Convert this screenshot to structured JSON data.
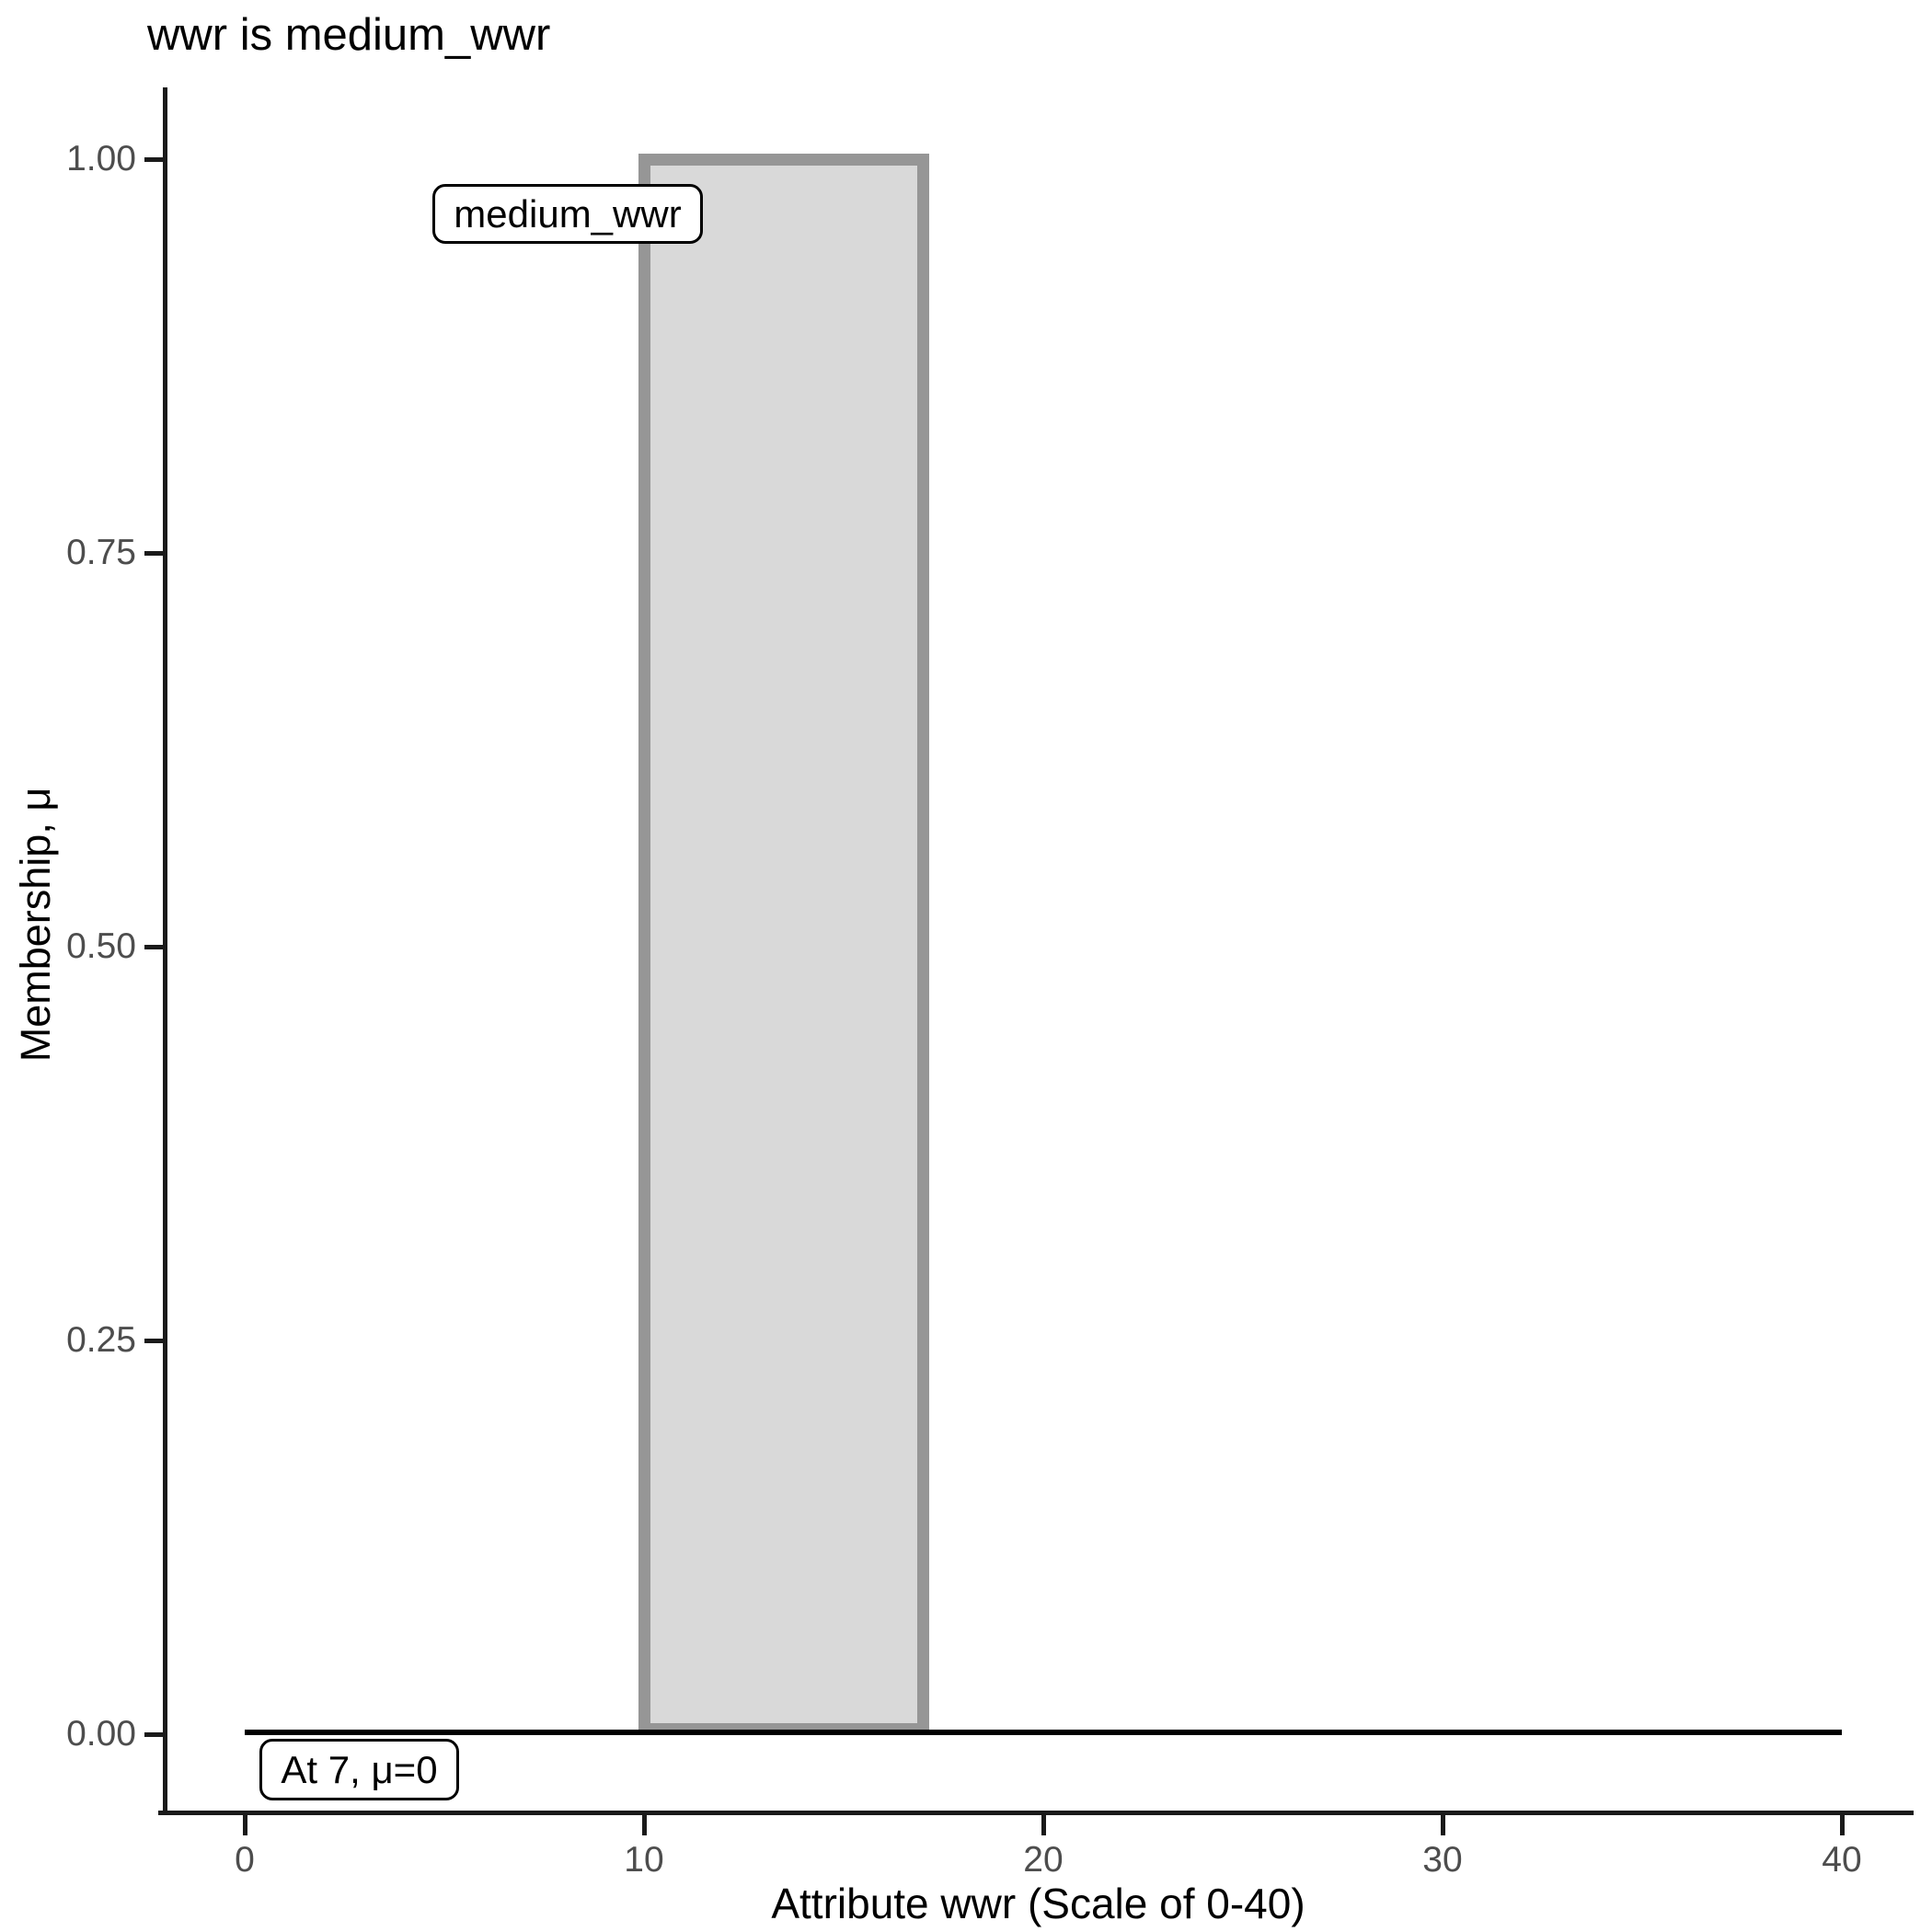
{
  "chart_data": {
    "type": "bar",
    "title": "wwr is medium_wwr",
    "xlabel": "Attribute wwr (Scale of 0-40)",
    "ylabel": "Membership, μ",
    "xlim": [
      0,
      40
    ],
    "ylim": [
      0,
      1
    ],
    "grid": false,
    "legend": false,
    "x_ticks": [
      {
        "value": 0,
        "label": "0"
      },
      {
        "value": 10,
        "label": "10"
      },
      {
        "value": 20,
        "label": "20"
      },
      {
        "value": 30,
        "label": "30"
      },
      {
        "value": 40,
        "label": "40"
      }
    ],
    "y_ticks": [
      {
        "value": 1.0,
        "label": "1.00"
      },
      {
        "value": 0.75,
        "label": "0.75"
      },
      {
        "value": 0.5,
        "label": "0.50"
      },
      {
        "value": 0.25,
        "label": "0.25"
      },
      {
        "value": 0.0,
        "label": "0.00"
      }
    ],
    "series": [
      {
        "name": "medium_wwr",
        "shape": "rectangle",
        "x_from": 10,
        "x_to": 17,
        "membership": 1.0,
        "fill": "#d9d9d9",
        "stroke": "#969696"
      }
    ],
    "baseline": {
      "membership": 0,
      "x_from": 0,
      "x_to": 40,
      "color": "#000000"
    },
    "annotations": [
      {
        "id": "set_label",
        "text": "medium_wwr"
      },
      {
        "id": "point_eval",
        "text": "At 7, μ=0"
      }
    ],
    "colors": {
      "axis": "#1a1a1a",
      "tick_label": "#4d4d4d",
      "title": "#000000",
      "background": "#ffffff"
    }
  }
}
